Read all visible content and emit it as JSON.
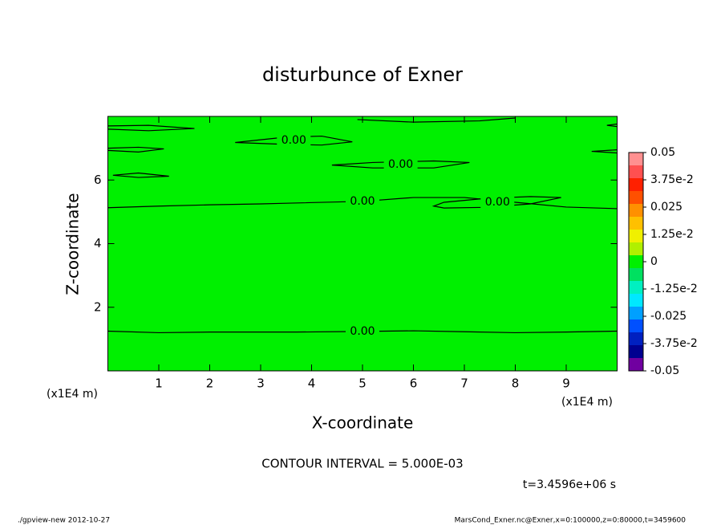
{
  "chart_data": {
    "type": "contour",
    "title": "disturbunce of Exner",
    "xlabel": "X-coordinate",
    "ylabel": "Z-coordinate",
    "xunit": "(x1E4 m)",
    "yunit": "(x1E4 m)",
    "xlim": [
      0,
      10
    ],
    "ylim": [
      0,
      8
    ],
    "xticks": [
      1,
      2,
      3,
      4,
      5,
      6,
      7,
      8,
      9
    ],
    "yticks": [
      2,
      4,
      6
    ],
    "field_color": "#00f000",
    "contours": [
      {
        "label": "0.00",
        "x": [
          0,
          1,
          2,
          3,
          3.7,
          5,
          6,
          7,
          8,
          9,
          10
        ],
        "y": [
          1.25,
          1.2,
          1.22,
          1.22,
          1.22,
          1.24,
          1.26,
          1.23,
          1.2,
          1.22,
          1.25
        ]
      },
      {
        "label": "0.00",
        "x": [
          0,
          1,
          2,
          3,
          3.5,
          5,
          6,
          7,
          8,
          9,
          10
        ],
        "y": [
          5.13,
          5.18,
          5.22,
          5.25,
          5.27,
          5.33,
          5.45,
          5.45,
          5.3,
          5.15,
          5.1
        ]
      },
      {
        "label": "0.00",
        "x": [
          6.4,
          6.6,
          7.4,
          8.3,
          8.9,
          8.3,
          7.4,
          6.6
        ],
        "y": [
          5.18,
          5.12,
          5.14,
          5.25,
          5.45,
          5.48,
          5.42,
          5.3
        ],
        "closed": true
      },
      {
        "label": "0.00",
        "x": [
          4.4,
          5.2,
          6.4,
          7.1,
          6.4,
          5.2
        ],
        "y": [
          6.47,
          6.38,
          6.38,
          6.55,
          6.6,
          6.55
        ],
        "closed": true
      },
      {
        "label": "0.00",
        "x": [
          2.5,
          3.5,
          4.2,
          4.8,
          4.2,
          3.5
        ],
        "y": [
          7.18,
          7.12,
          7.1,
          7.2,
          7.38,
          7.35
        ],
        "closed": true
      },
      {
        "x": [
          0.1,
          0.6,
          1.2,
          0.6
        ],
        "y": [
          6.15,
          6.08,
          6.12,
          6.22
        ],
        "closed": true
      },
      {
        "x": [
          0,
          0.6,
          1.1,
          0.6,
          0
        ],
        "y": [
          6.93,
          6.88,
          6.98,
          7.03,
          7.0
        ]
      },
      {
        "x": [
          0,
          0.8,
          1.7,
          0.8,
          0
        ],
        "y": [
          7.6,
          7.55,
          7.62,
          7.72,
          7.7
        ]
      },
      {
        "x": [
          4.9,
          6.0,
          7.3,
          8.0
        ],
        "y": [
          7.9,
          7.82,
          7.86,
          7.95
        ]
      },
      {
        "x": [
          10,
          9.8,
          10
        ],
        "y": [
          7.68,
          7.72,
          7.76
        ]
      },
      {
        "x": [
          10,
          9.5,
          10
        ],
        "y": [
          6.85,
          6.9,
          6.95
        ]
      }
    ],
    "colorbar": {
      "ticks": [
        0.05,
        {
          "value": 0.0375,
          "label": "3.75e-2"
        },
        0.025,
        {
          "value": 0.0125,
          "label": "1.25e-2"
        },
        0,
        {
          "value": -0.0125,
          "label": "-1.25e-2"
        },
        -0.025,
        {
          "value": -0.0375,
          "label": "-3.75e-2"
        },
        -0.05
      ],
      "colors": [
        "#ff9090",
        "#ff5050",
        "#ff2000",
        "#ff5000",
        "#ff9000",
        "#ffc000",
        "#f0f000",
        "#b0f000",
        "#00f000",
        "#00e060",
        "#00f0c0",
        "#00e8ff",
        "#00a0ff",
        "#0050ff",
        "#0020c0",
        "#000090",
        "#7000a0"
      ]
    },
    "annotations": [
      "CONTOUR INTERVAL = 5.000E-03",
      "t=3.4596e+06 s"
    ],
    "footer_left": "./gpview-new  2012-10-27",
    "footer_right": "MarsCond_Exner.nc@Exner,x=0:100000,z=0:80000,t=3459600"
  }
}
